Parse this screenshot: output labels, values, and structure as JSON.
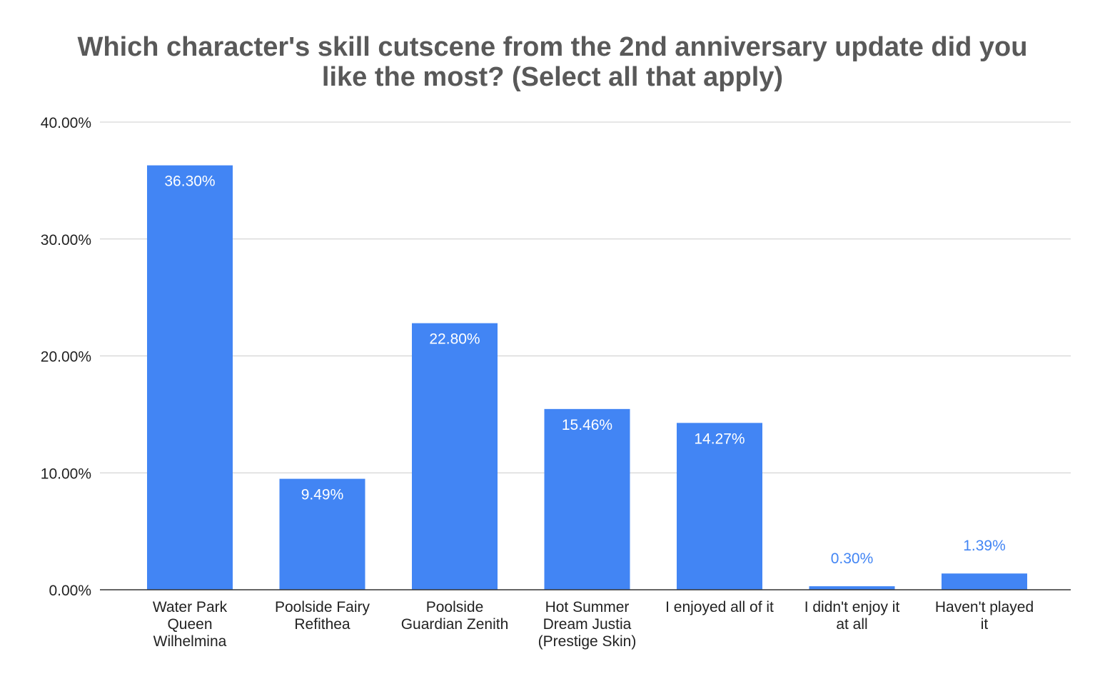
{
  "chart_data": {
    "type": "bar",
    "title_lines": [
      "Which character's skill cutscene from the 2nd anniversary update did you",
      "like the most? (Select all that apply)"
    ],
    "xlabel": "",
    "ylabel": "",
    "ylim": [
      0,
      40
    ],
    "yticks": [
      "0.00%",
      "10.00%",
      "20.00%",
      "30.00%",
      "40.00%"
    ],
    "grid": true,
    "legend": "none",
    "bar_color": "#4285f4",
    "categories": [
      [
        "Water Park",
        "Queen",
        "Wilhelmina"
      ],
      [
        "Poolside Fairy",
        "Refithea"
      ],
      [
        "Poolside",
        "Guardian Zenith"
      ],
      [
        "Hot Summer",
        "Dream Justia",
        "(Prestige Skin)"
      ],
      [
        "I enjoyed all of it"
      ],
      [
        "I didn't enjoy it",
        "at all"
      ],
      [
        "Haven't played",
        "it"
      ]
    ],
    "values": [
      36.3,
      9.49,
      22.8,
      15.46,
      14.27,
      0.3,
      1.39
    ],
    "labels": [
      "36.30%",
      "9.49%",
      "22.80%",
      "15.46%",
      "14.27%",
      "0.30%",
      "1.39%"
    ]
  }
}
